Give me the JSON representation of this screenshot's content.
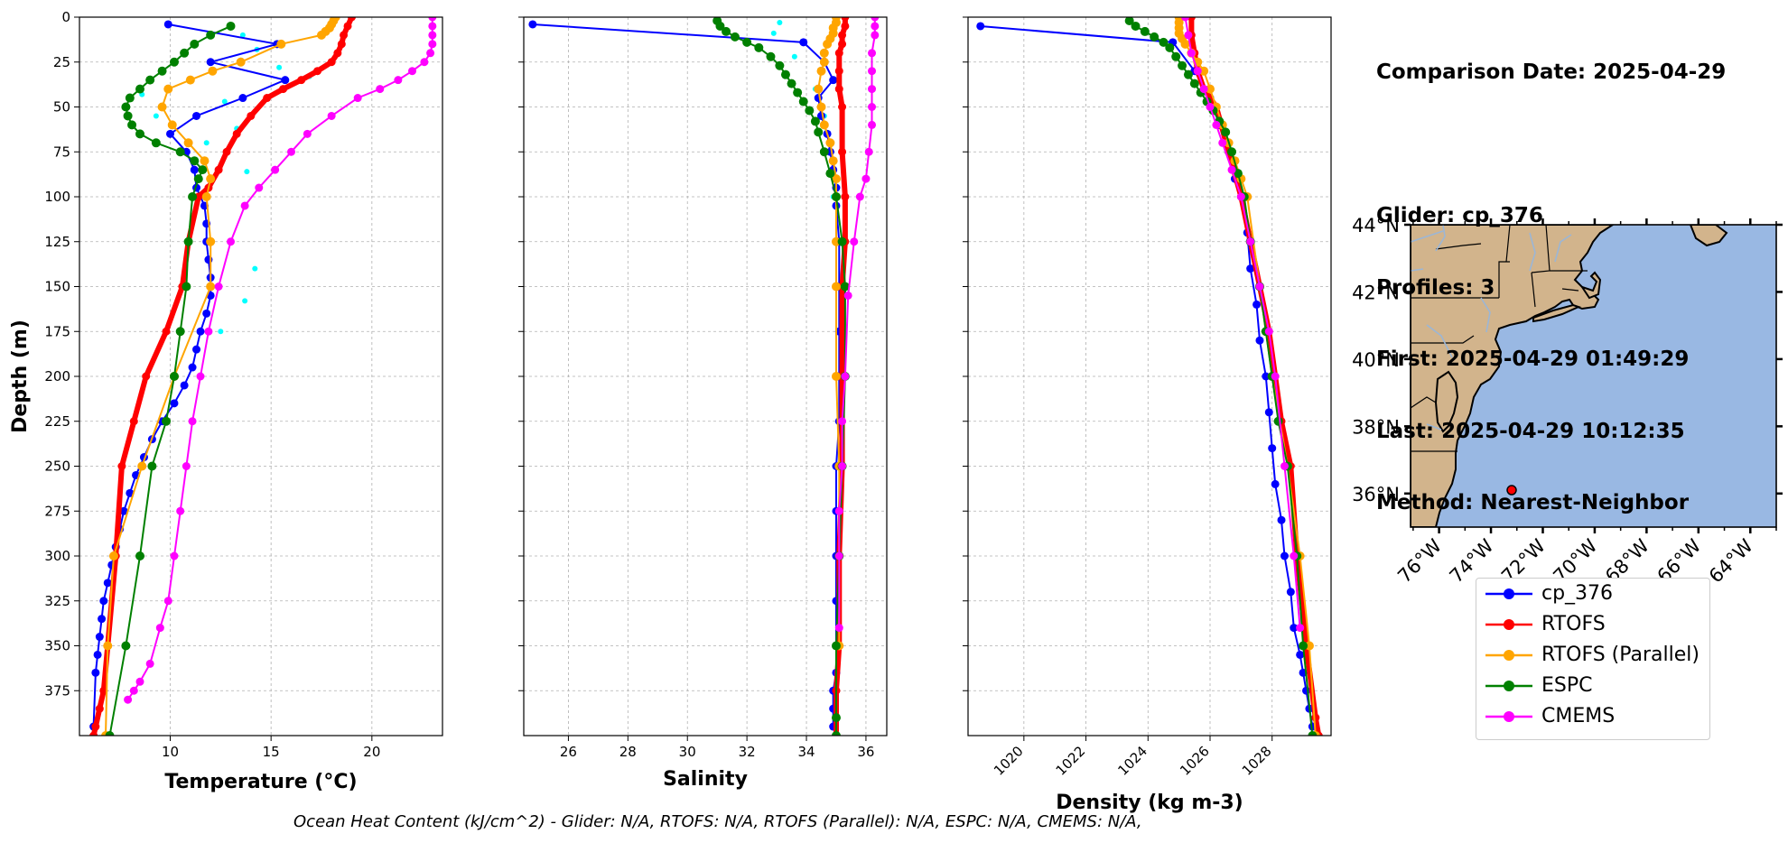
{
  "info": {
    "comparison_date": "Comparison Date: 2025-04-29",
    "glider": "Glider: cp_376",
    "profiles": "Profiles: 3",
    "first": "First: 2025-04-29 01:49:29",
    "last": "Last: 2025-04-29 10:12:35",
    "method": "Method: Nearest-Neighbor"
  },
  "footer": "Ocean Heat Content (kJ/cm^2) - Glider: N/A,  RTOFS: N/A,  RTOFS (Parallel): N/A,  ESPC: N/A,  CMEMS: N/A,",
  "legend": [
    {
      "label": "cp_376",
      "color": "#0000ff"
    },
    {
      "label": "RTOFS",
      "color": "#ff0000"
    },
    {
      "label": "RTOFS (Parallel)",
      "color": "#ffa500"
    },
    {
      "label": "ESPC",
      "color": "#008000"
    },
    {
      "label": "CMEMS",
      "color": "#ff00ff"
    }
  ],
  "map": {
    "lat_labels": [
      "44°N",
      "42°N",
      "40°N",
      "38°N",
      "36°N"
    ],
    "lon_labels": [
      "76°W",
      "74°W",
      "72°W",
      "70°W",
      "68°W",
      "66°W",
      "64°W"
    ],
    "lat_values": [
      44,
      42,
      40,
      38,
      36
    ],
    "lon_values": [
      -76,
      -74,
      -72,
      -70,
      -68,
      -66,
      -64
    ],
    "extent": {
      "lon": [
        -77.1,
        -63.0
      ],
      "lat": [
        35.0,
        44.0
      ]
    },
    "glider_position": {
      "lon": -73.2,
      "lat": 36.1
    },
    "colors": {
      "ocean": "#99b8e3",
      "land": "#d2b48c",
      "marker": "#ff0000"
    }
  },
  "chart_data": [
    {
      "type": "line",
      "xlabel": "Temperature (°C)",
      "ylabel": "Depth (m)",
      "xlim": [
        5.5,
        23.5
      ],
      "ylim": [
        400,
        0
      ],
      "xticks": [
        10,
        15,
        20
      ],
      "yticks": [
        0,
        25,
        50,
        75,
        100,
        125,
        150,
        175,
        200,
        225,
        250,
        275,
        300,
        325,
        350,
        375
      ],
      "grid": true,
      "series": [
        {
          "name": "cp_376",
          "color": "#0000ff",
          "lw": 2,
          "ms": 9,
          "x": [
            9.9,
            15.3,
            12.0,
            15.7,
            13.6,
            11.3,
            10.0,
            10.8,
            11.2,
            11.3,
            11.7,
            11.8,
            11.8,
            11.9,
            12.0,
            12.0,
            11.8,
            11.5,
            11.3,
            11.1,
            10.7,
            10.2,
            9.6,
            9.1,
            8.7,
            8.3,
            8.0,
            7.7,
            7.5,
            7.3,
            7.1,
            6.9,
            6.7,
            6.6,
            6.5,
            6.4,
            6.3,
            6.2
          ],
          "y": [
            4,
            15,
            25,
            35,
            45,
            55,
            65,
            75,
            85,
            95,
            105,
            115,
            125,
            135,
            145,
            155,
            165,
            175,
            185,
            195,
            205,
            215,
            225,
            235,
            245,
            255,
            265,
            275,
            285,
            295,
            305,
            315,
            325,
            335,
            345,
            355,
            365,
            395
          ]
        },
        {
          "name": "RTOFS",
          "color": "#ff0000",
          "lw": 6,
          "ms": 9,
          "x": [
            19.0,
            18.8,
            18.6,
            18.5,
            18.3,
            18.0,
            17.3,
            16.5,
            15.6,
            14.8,
            14.0,
            13.3,
            12.8,
            12.4,
            11.9,
            11.4,
            10.9,
            10.6,
            9.8,
            8.8,
            8.2,
            7.6,
            7.3,
            6.9,
            6.7,
            6.5,
            6.3,
            6.2
          ],
          "y": [
            0,
            5,
            10,
            15,
            20,
            25,
            30,
            35,
            40,
            45,
            55,
            65,
            75,
            85,
            95,
            100,
            125,
            150,
            175,
            200,
            225,
            250,
            300,
            350,
            375,
            385,
            395,
            400
          ]
        },
        {
          "name": "RTOFS (Parallel)",
          "color": "#ffa500",
          "lw": 2,
          "ms": 10,
          "x": [
            18.2,
            18.1,
            18.0,
            17.9,
            17.7,
            17.5,
            15.5,
            13.5,
            12.1,
            11.0,
            9.9,
            9.6,
            10.1,
            10.9,
            11.7,
            12.0,
            11.8,
            12.0,
            12.0,
            10.2,
            8.6,
            7.2,
            6.9,
            6.8
          ],
          "y": [
            0,
            2,
            4,
            6,
            8,
            10,
            15,
            25,
            30,
            35,
            40,
            50,
            60,
            70,
            80,
            90,
            100,
            125,
            150,
            200,
            250,
            300,
            350,
            400
          ]
        },
        {
          "name": "ESPC",
          "color": "#008000",
          "lw": 2,
          "ms": 10,
          "x": [
            13.0,
            12.0,
            11.2,
            10.7,
            10.2,
            9.6,
            9.0,
            8.5,
            8.0,
            7.8,
            7.9,
            8.1,
            8.5,
            9.3,
            10.5,
            11.2,
            11.6,
            11.4,
            11.1,
            10.9,
            10.8,
            10.5,
            10.2,
            9.8,
            9.1,
            8.5,
            7.8,
            7.0
          ],
          "y": [
            5,
            10,
            15,
            20,
            25,
            30,
            35,
            40,
            45,
            50,
            55,
            60,
            65,
            70,
            75,
            80,
            85,
            90,
            100,
            125,
            150,
            175,
            200,
            225,
            250,
            300,
            350,
            400
          ]
        },
        {
          "name": "CMEMS",
          "color": "#ff00ff",
          "lw": 2,
          "ms": 9,
          "x": [
            23.0,
            23.0,
            23.0,
            23.0,
            22.9,
            22.6,
            22.0,
            21.3,
            20.4,
            19.3,
            18.0,
            16.8,
            16.0,
            15.2,
            14.4,
            13.7,
            13.0,
            12.4,
            11.9,
            11.5,
            11.1,
            10.8,
            10.5,
            10.2,
            9.9,
            9.5,
            9.0,
            8.5,
            8.2,
            7.9
          ],
          "y": [
            0,
            5,
            10,
            15,
            20,
            25,
            30,
            35,
            40,
            45,
            55,
            65,
            75,
            85,
            95,
            105,
            125,
            150,
            175,
            200,
            225,
            250,
            275,
            300,
            325,
            340,
            360,
            370,
            375,
            380
          ]
        }
      ],
      "extra_points": {
        "color": "#00ffff",
        "x": [
          13.6,
          14.3,
          13.5,
          15.4,
          16.9,
          8.6,
          12.7,
          9.3,
          13.3,
          11.8,
          13.8,
          14.2,
          13.7,
          12.5
        ],
        "y": [
          10,
          18,
          24,
          28,
          33,
          43,
          47,
          55,
          62,
          70,
          86,
          140,
          158,
          175
        ]
      }
    },
    {
      "type": "line",
      "xlabel": "Salinity",
      "xlim": [
        24.5,
        36.7
      ],
      "ylim": [
        400,
        0
      ],
      "xticks": [
        26,
        28,
        30,
        32,
        34,
        36
      ],
      "grid": true,
      "series": [
        {
          "name": "cp_376",
          "color": "#0000ff",
          "lw": 2,
          "ms": 9,
          "x": [
            24.8,
            33.9,
            34.6,
            34.9,
            34.4,
            34.5,
            34.7,
            34.8,
            34.9,
            35.0,
            35.0,
            35.1,
            35.1,
            35.1,
            35.1,
            35.1,
            35.0,
            35.0,
            35.0,
            35.0,
            35.0,
            35.0,
            34.9,
            34.9,
            34.9
          ],
          "y": [
            4,
            14,
            25,
            35,
            45,
            55,
            65,
            75,
            85,
            95,
            105,
            125,
            150,
            175,
            200,
            225,
            250,
            275,
            300,
            325,
            350,
            365,
            375,
            385,
            395
          ]
        },
        {
          "name": "RTOFS",
          "color": "#ff0000",
          "lw": 6,
          "ms": 9,
          "x": [
            35.3,
            35.3,
            35.2,
            35.2,
            35.1,
            35.1,
            35.1,
            35.2,
            35.2,
            35.3,
            35.3,
            35.2,
            35.2,
            35.2,
            35.1,
            35.1,
            35.0,
            35.0
          ],
          "y": [
            0,
            5,
            10,
            15,
            20,
            30,
            40,
            50,
            75,
            100,
            125,
            150,
            200,
            250,
            300,
            350,
            375,
            400
          ]
        },
        {
          "name": "RTOFS (Parallel)",
          "color": "#ffa500",
          "lw": 2,
          "ms": 10,
          "x": [
            35.0,
            35.0,
            34.9,
            34.9,
            34.8,
            34.7,
            34.6,
            34.6,
            34.5,
            34.4,
            34.5,
            34.6,
            34.8,
            34.9,
            35.0,
            35.0,
            35.0,
            35.0,
            35.0,
            35.1,
            35.1,
            35.1
          ],
          "y": [
            0,
            3,
            6,
            9,
            12,
            15,
            20,
            25,
            30,
            40,
            50,
            60,
            70,
            80,
            90,
            100,
            125,
            150,
            200,
            250,
            300,
            350
          ]
        },
        {
          "name": "ESPC",
          "color": "#008000",
          "lw": 2,
          "ms": 10,
          "x": [
            31.0,
            31.1,
            31.3,
            31.6,
            32.0,
            32.4,
            32.8,
            33.1,
            33.3,
            33.5,
            33.7,
            33.9,
            34.1,
            34.3,
            34.4,
            34.6,
            34.8,
            35.0,
            35.2,
            35.3,
            35.3,
            35.2,
            35.1,
            35.0,
            35.0,
            35.0
          ],
          "y": [
            2,
            5,
            8,
            11,
            14,
            17,
            22,
            27,
            32,
            37,
            42,
            47,
            52,
            58,
            64,
            75,
            87,
            100,
            125,
            150,
            200,
            250,
            300,
            350,
            390,
            400
          ]
        },
        {
          "name": "CMEMS",
          "color": "#ff00ff",
          "lw": 2,
          "ms": 9,
          "x": [
            36.3,
            36.3,
            36.3,
            36.2,
            36.2,
            36.2,
            36.2,
            36.2,
            36.1,
            36.0,
            35.8,
            35.6,
            35.4,
            35.3,
            35.2,
            35.2,
            35.1,
            35.1,
            35.1
          ],
          "y": [
            0,
            5,
            10,
            20,
            30,
            40,
            50,
            60,
            75,
            90,
            100,
            125,
            155,
            200,
            225,
            250,
            275,
            300,
            340
          ]
        }
      ],
      "extra_points": {
        "color": "#00ffff",
        "x": [
          33.1,
          32.9,
          33.6,
          34.3,
          34.6,
          34.8,
          34.9,
          35.0
        ],
        "y": [
          3,
          9,
          22,
          40,
          55,
          75,
          100,
          125
        ]
      }
    },
    {
      "type": "line",
      "xlabel": "Density (kg m-3)",
      "xlim": [
        1018.2,
        1029.9
      ],
      "ylim": [
        400,
        0
      ],
      "xticks": [
        1020,
        1022,
        1024,
        1026,
        1028
      ],
      "grid": true,
      "series": [
        {
          "name": "cp_376",
          "color": "#0000ff",
          "lw": 2,
          "ms": 9,
          "x": [
            1018.6,
            1024.8,
            1025.5,
            1026.0,
            1026.3,
            1026.6,
            1026.8,
            1027.0,
            1027.2,
            1027.3,
            1027.5,
            1027.6,
            1027.8,
            1027.9,
            1028.0,
            1028.1,
            1028.3,
            1028.4,
            1028.6,
            1028.7,
            1028.9,
            1029.0,
            1029.1,
            1029.2,
            1029.3
          ],
          "y": [
            5,
            14,
            30,
            45,
            60,
            75,
            90,
            100,
            120,
            140,
            160,
            180,
            200,
            220,
            240,
            260,
            280,
            300,
            320,
            340,
            355,
            365,
            375,
            385,
            395
          ]
        },
        {
          "name": "RTOFS",
          "color": "#ff0000",
          "lw": 6,
          "ms": 9,
          "x": [
            1025.4,
            1025.4,
            1025.5,
            1025.6,
            1025.8,
            1026.2,
            1026.6,
            1027.0,
            1027.3,
            1027.6,
            1027.9,
            1028.1,
            1028.3,
            1028.6,
            1028.8,
            1029.1,
            1029.4,
            1029.5
          ],
          "y": [
            0,
            10,
            20,
            30,
            40,
            50,
            75,
            100,
            125,
            150,
            175,
            200,
            225,
            250,
            300,
            350,
            390,
            400
          ]
        },
        {
          "name": "RTOFS (Parallel)",
          "color": "#ffa500",
          "lw": 2,
          "ms": 10,
          "x": [
            1025.0,
            1025.0,
            1025.0,
            1025.0,
            1025.1,
            1025.2,
            1025.4,
            1025.6,
            1025.8,
            1026.0,
            1026.2,
            1026.4,
            1026.6,
            1026.8,
            1027.0,
            1027.2,
            1027.6,
            1028.0,
            1028.5,
            1028.9,
            1029.2,
            1029.4
          ],
          "y": [
            0,
            3,
            6,
            9,
            12,
            15,
            20,
            25,
            30,
            40,
            50,
            60,
            70,
            80,
            90,
            100,
            150,
            200,
            250,
            300,
            350,
            400
          ]
        },
        {
          "name": "ESPC",
          "color": "#008000",
          "lw": 2,
          "ms": 10,
          "x": [
            1023.4,
            1023.6,
            1023.9,
            1024.2,
            1024.5,
            1024.7,
            1024.9,
            1025.1,
            1025.3,
            1025.5,
            1025.7,
            1025.9,
            1026.1,
            1026.3,
            1026.5,
            1026.7,
            1026.9,
            1027.1,
            1027.3,
            1027.6,
            1027.8,
            1028.0,
            1028.2,
            1028.5,
            1028.8,
            1029.0,
            1029.3
          ],
          "y": [
            2,
            5,
            8,
            11,
            14,
            17,
            22,
            27,
            32,
            37,
            42,
            47,
            52,
            58,
            64,
            75,
            87,
            100,
            125,
            150,
            175,
            200,
            225,
            250,
            300,
            350,
            400
          ]
        },
        {
          "name": "CMEMS",
          "color": "#ff00ff",
          "lw": 2,
          "ms": 9,
          "x": [
            1025.2,
            1025.3,
            1025.4,
            1025.6,
            1025.8,
            1026.0,
            1026.2,
            1026.4,
            1026.7,
            1027.0,
            1027.3,
            1027.6,
            1027.9,
            1028.1,
            1028.4,
            1028.7,
            1028.9
          ],
          "y": [
            0,
            10,
            20,
            30,
            40,
            50,
            60,
            70,
            85,
            100,
            125,
            150,
            175,
            200,
            250,
            300,
            340
          ]
        }
      ]
    }
  ]
}
